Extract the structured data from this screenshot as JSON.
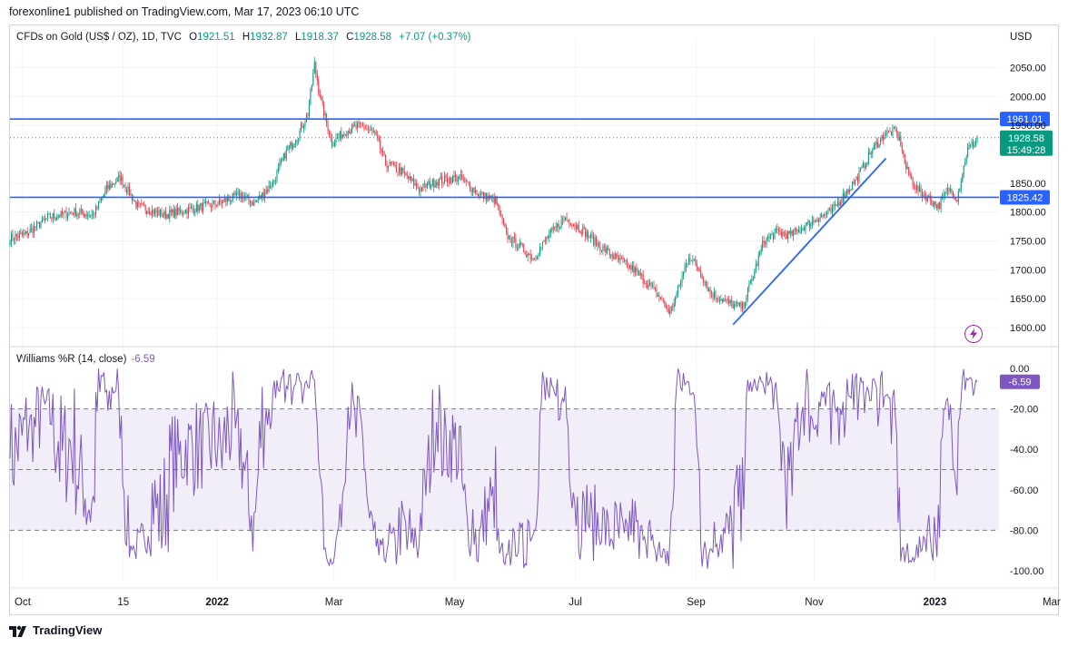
{
  "header": {
    "published": "forexonline1 published on TradingView.com, Mar 17, 2023 06:10 UTC"
  },
  "legend": {
    "symbol": "CFDs on Gold (US$ / OZ), 1D, TVC",
    "open_label": "O",
    "open": "1921.51",
    "high_label": "H",
    "high": "1932.87",
    "low_label": "L",
    "low": "1918.37",
    "close_label": "C",
    "close": "1928.58",
    "change": "+7.07 (+0.37%)"
  },
  "currency": "USD",
  "footer": {
    "brand": "TradingView"
  },
  "colors": {
    "up": "#089981",
    "down": "#f23645",
    "lines": "#2962ff",
    "indicator": "#7e57c2",
    "indicator_band": "#ede7f6",
    "grid": "#f0f3fa"
  },
  "chart_data": [
    {
      "type": "candlestick",
      "title": "CFDs on Gold (US$ / OZ), 1D, TVC",
      "x_ticks": [
        "Oct",
        "15",
        "2022",
        "Mar",
        "May",
        "Jul",
        "Sep",
        "Nov",
        "2023",
        "Mar"
      ],
      "y_ticks": [
        "2050.00",
        "2000.00",
        "1950.00",
        "1850.00",
        "1800.00",
        "1750.00",
        "1700.00",
        "1650.00",
        "1600.00"
      ],
      "ylim": [
        1577,
        2090
      ],
      "price_path": [
        [
          0,
          1755
        ],
        [
          12,
          1762
        ],
        [
          28,
          1790
        ],
        [
          48,
          1800
        ],
        [
          62,
          1795
        ],
        [
          72,
          1840
        ],
        [
          82,
          1860
        ],
        [
          95,
          1810
        ],
        [
          115,
          1795
        ],
        [
          135,
          1805
        ],
        [
          155,
          1815
        ],
        [
          172,
          1830
        ],
        [
          182,
          1815
        ],
        [
          196,
          1850
        ],
        [
          205,
          1900
        ],
        [
          215,
          1935
        ],
        [
          222,
          1970
        ],
        [
          227,
          2055
        ],
        [
          232,
          1990
        ],
        [
          240,
          1920
        ],
        [
          250,
          1940
        ],
        [
          262,
          1950
        ],
        [
          272,
          1935
        ],
        [
          280,
          1885
        ],
        [
          292,
          1870
        ],
        [
          305,
          1840
        ],
        [
          320,
          1855
        ],
        [
          335,
          1860
        ],
        [
          350,
          1830
        ],
        [
          362,
          1820
        ],
        [
          370,
          1760
        ],
        [
          380,
          1740
        ],
        [
          390,
          1720
        ],
        [
          402,
          1760
        ],
        [
          414,
          1790
        ],
        [
          426,
          1770
        ],
        [
          440,
          1740
        ],
        [
          452,
          1720
        ],
        [
          465,
          1700
        ],
        [
          478,
          1670
        ],
        [
          485,
          1650
        ],
        [
          492,
          1625
        ],
        [
          500,
          1680
        ],
        [
          506,
          1725
        ],
        [
          514,
          1700
        ],
        [
          522,
          1660
        ],
        [
          530,
          1650
        ],
        [
          538,
          1640
        ],
        [
          546,
          1635
        ],
        [
          554,
          1690
        ],
        [
          562,
          1750
        ],
        [
          572,
          1765
        ],
        [
          582,
          1760
        ],
        [
          592,
          1775
        ],
        [
          602,
          1790
        ],
        [
          612,
          1800
        ],
        [
          622,
          1830
        ],
        [
          632,
          1860
        ],
        [
          642,
          1905
        ],
        [
          652,
          1935
        ],
        [
          660,
          1940
        ],
        [
          664,
          1920
        ],
        [
          668,
          1875
        ],
        [
          676,
          1840
        ],
        [
          684,
          1825
        ],
        [
          692,
          1810
        ],
        [
          700,
          1840
        ],
        [
          706,
          1825
        ],
        [
          714,
          1910
        ],
        [
          720,
          1921
        ]
      ],
      "horizontal_levels": [
        {
          "value": 1961.01,
          "label": "1961.01"
        },
        {
          "value": 1825.42,
          "label": "1825.42"
        }
      ],
      "trendline": {
        "from": {
          "index": 539,
          "price": 1605
        },
        "to": {
          "index": 653,
          "price": 1893
        }
      },
      "last_price": {
        "value": 1928.58,
        "label": "1928.58",
        "countdown": "15:49:28"
      }
    },
    {
      "type": "line",
      "title": "Williams %R (14, close)",
      "current_value": "-6.59",
      "y_ticks": [
        "0.00",
        "-20.00",
        "-40.00",
        "-60.00",
        "-80.00",
        "-100.00"
      ],
      "ylim": [
        -102,
        2
      ],
      "bands": [
        -20,
        -50,
        -80
      ],
      "last_value": {
        "value": -6.59,
        "label": "-6.59"
      }
    }
  ]
}
